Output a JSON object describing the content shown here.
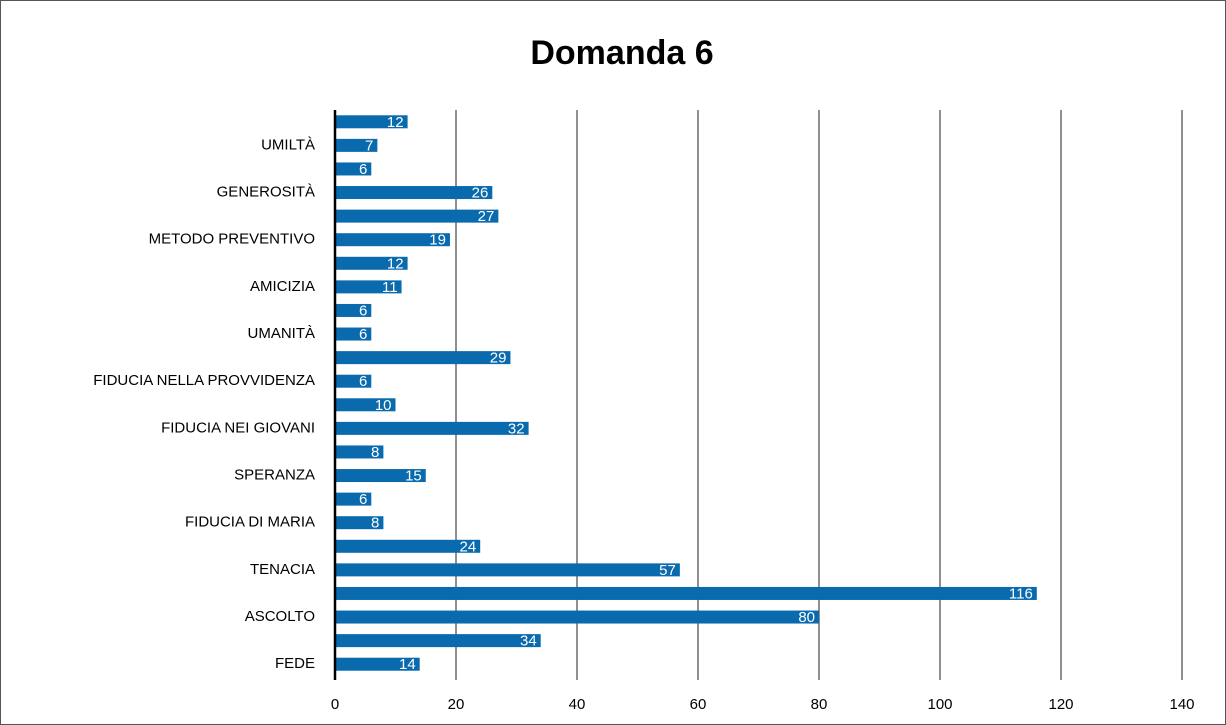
{
  "chart_data": {
    "type": "barh",
    "title": "Domanda 6",
    "categories": [
      "FEDE",
      null,
      "ASCOLTO",
      null,
      "TENACIA",
      null,
      "FIDUCIA DI MARIA",
      null,
      "SPERANZA",
      null,
      "FIDUCIA NEI GIOVANI",
      null,
      "FIDUCIA NELLA PROVVIDENZA",
      null,
      "UMANITÀ",
      null,
      "AMICIZIA",
      null,
      "METODO PREVENTIVO",
      null,
      "GENEROSITÀ",
      null,
      "UMILTÀ",
      null
    ],
    "values": [
      14,
      34,
      80,
      116,
      57,
      24,
      8,
      6,
      15,
      8,
      32,
      10,
      6,
      29,
      6,
      6,
      11,
      12,
      19,
      27,
      26,
      6,
      7,
      12
    ],
    "color": "#0a6aae",
    "xlim": [
      0,
      140
    ],
    "xticks": [
      0,
      20,
      40,
      60,
      80,
      100,
      120,
      140
    ],
    "grid": true
  }
}
